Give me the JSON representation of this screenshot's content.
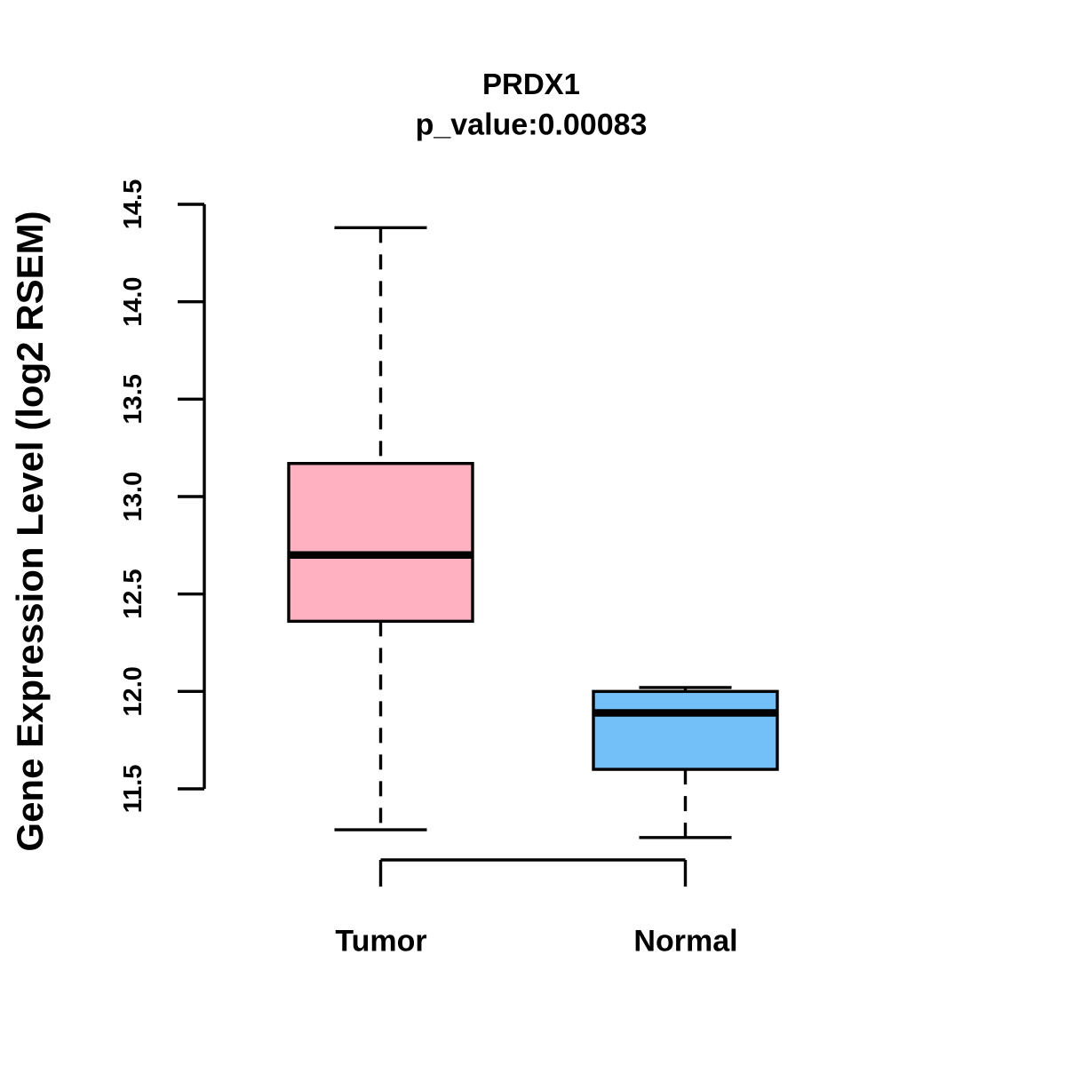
{
  "chart_data": {
    "type": "boxplot",
    "title": "PRDX1",
    "subtitle": "p_value:0.00083",
    "ylabel": "Gene Expression Level (log2 RSEM)",
    "xlabel": "",
    "ylim": [
      11.5,
      14.5
    ],
    "yticks": [
      11.5,
      12.0,
      12.5,
      13.0,
      13.5,
      14.0,
      14.5
    ],
    "grid": false,
    "legend": "none",
    "categories": [
      "Tumor",
      "Normal"
    ],
    "series": [
      {
        "name": "Tumor",
        "fill_color": "#FFB1C1",
        "lower_whisker": 11.29,
        "q1": 12.36,
        "median": 12.7,
        "q3": 13.17,
        "upper_whisker": 14.38
      },
      {
        "name": "Normal",
        "fill_color": "#73BFF7",
        "lower_whisker": 11.25,
        "q1": 11.6,
        "median": 11.89,
        "q3": 12.0,
        "upper_whisker": 12.02
      }
    ],
    "stroke_color": "#000000",
    "background_color": "#FFFFFF"
  }
}
